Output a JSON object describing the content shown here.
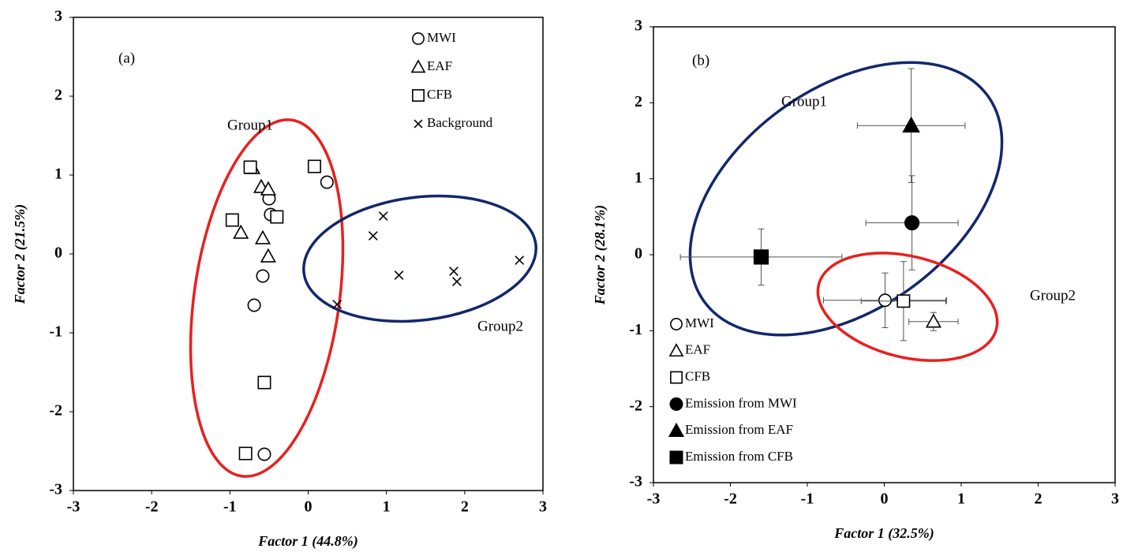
{
  "chart_data": [
    {
      "type": "scatter",
      "annotations": [
        "(a)",
        "Group1",
        "Group2"
      ],
      "x_label": "Factor 1 (44.8%)",
      "y_label": "Factor 2 (21.5%)",
      "xlim": [
        -3,
        3
      ],
      "ylim": [
        -3,
        3
      ],
      "xticks": [
        -3,
        -2,
        -1,
        0,
        1,
        2,
        3
      ],
      "yticks": [
        -3,
        -2,
        -1,
        0,
        1,
        2,
        3
      ],
      "grid": false,
      "legend": "upper right",
      "series": [
        {
          "name": "MWI",
          "marker": "circle",
          "filled": false,
          "color": "#000000",
          "x": [
            0.24,
            -0.5,
            -0.48,
            -0.58,
            -0.69,
            -0.56
          ],
          "values": [
            0.91,
            0.7,
            0.5,
            -0.28,
            -0.65,
            -2.54
          ]
        },
        {
          "name": "EAF",
          "marker": "triangle",
          "filled": false,
          "color": "#000000",
          "x": [
            -0.71,
            -0.6,
            -0.51,
            -0.86,
            -0.58,
            -0.51
          ],
          "values": [
            1.09,
            0.85,
            0.82,
            0.27,
            0.2,
            -0.03
          ]
        },
        {
          "name": "CFB",
          "marker": "square",
          "filled": false,
          "color": "#000000",
          "x": [
            -0.74,
            0.08,
            -0.4,
            -0.97,
            -0.56,
            -0.8
          ],
          "values": [
            1.1,
            1.11,
            0.47,
            0.43,
            -1.63,
            -2.53
          ]
        },
        {
          "name": "Background",
          "marker": "x",
          "filled": false,
          "color": "#000000",
          "x": [
            0.96,
            0.83,
            1.16,
            1.86,
            1.9,
            2.7,
            0.37
          ],
          "values": [
            0.48,
            0.23,
            -0.27,
            -0.22,
            -0.35,
            -0.08,
            -0.64
          ]
        }
      ]
    },
    {
      "type": "scatter",
      "annotations": [
        "(b)",
        "Group1",
        "Group2"
      ],
      "x_label": "Factor 1 (32.5%)",
      "y_label": "Factor 2 (28.1%)",
      "xlim": [
        -3,
        3
      ],
      "ylim": [
        -3,
        3
      ],
      "xticks": [
        -3,
        -2,
        -1,
        0,
        1,
        2,
        3
      ],
      "yticks": [
        -3,
        -2,
        -1,
        0,
        1,
        2,
        3
      ],
      "grid": false,
      "legend": "lower left",
      "series": [
        {
          "name": "MWI",
          "marker": "circle",
          "filled": false,
          "color": "#000000",
          "x": [
            0.01
          ],
          "values": [
            -0.6
          ],
          "x_err": [
            0.8
          ],
          "y_err": [
            0.36
          ]
        },
        {
          "name": "EAF",
          "marker": "triangle",
          "filled": false,
          "color": "#000000",
          "x": [
            0.64
          ],
          "values": [
            -0.88
          ],
          "x_err": [
            0.32
          ],
          "y_err": [
            0.12
          ]
        },
        {
          "name": "CFB",
          "marker": "square",
          "filled": false,
          "color": "#000000",
          "x": [
            0.25
          ],
          "values": [
            -0.61
          ],
          "x_err": [
            0.55
          ],
          "y_err": [
            0.52
          ]
        },
        {
          "name": "Emission from MWI",
          "marker": "circle",
          "filled": true,
          "color": "#000000",
          "x": [
            0.36
          ],
          "values": [
            0.42
          ],
          "x_err": [
            0.6
          ],
          "y_err": [
            0.62
          ]
        },
        {
          "name": "Emission from EAF",
          "marker": "triangle",
          "filled": true,
          "color": "#000000",
          "x": [
            0.35
          ],
          "values": [
            1.7
          ],
          "x_err": [
            0.7
          ],
          "y_err": [
            0.75
          ]
        },
        {
          "name": "Emission from CFB",
          "marker": "square",
          "filled": true,
          "color": "#000000",
          "x": [
            -1.6
          ],
          "values": [
            -0.03
          ],
          "x_err": [
            1.05
          ],
          "y_err": [
            0.37
          ]
        }
      ]
    }
  ]
}
